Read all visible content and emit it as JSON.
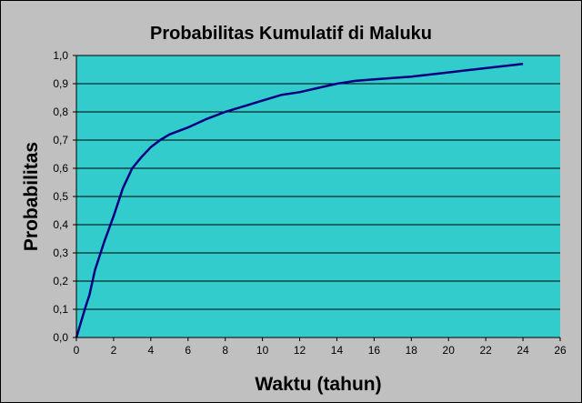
{
  "colors": {
    "background": "#c0c0c0",
    "plot_area": "#33cccc",
    "line": "#000080",
    "grid": "#000000"
  },
  "chart_data": {
    "type": "line",
    "title": "Probabilitas Kumulatif di  Maluku",
    "xlabel": "Waktu (tahun)",
    "ylabel": "Probabilitas",
    "xlim": [
      0,
      26
    ],
    "ylim": [
      0,
      1
    ],
    "grid": true,
    "x_ticks": [
      0,
      2,
      4,
      6,
      8,
      10,
      12,
      14,
      16,
      18,
      20,
      22,
      24,
      26
    ],
    "x_tick_labels": [
      "0",
      "2",
      "4",
      "6",
      "8",
      "10",
      "12",
      "14",
      "16",
      "18",
      "20",
      "22",
      "24",
      "26"
    ],
    "y_ticks": [
      0,
      0.1,
      0.2,
      0.3,
      0.4,
      0.5,
      0.6,
      0.7,
      0.8,
      0.9,
      1.0
    ],
    "y_tick_labels": [
      "0,0",
      "0,1",
      "0,2",
      "0,3",
      "0,4",
      "0,5",
      "0,6",
      "0,7",
      "0,8",
      "0,9",
      "1,0"
    ],
    "series": [
      {
        "x": [
          0,
          0.5,
          0.7,
          1,
          1.5,
          2,
          2.5,
          3,
          3.5,
          4,
          4.5,
          5,
          6,
          7,
          8,
          9,
          10,
          11,
          12,
          13,
          14,
          15,
          16,
          18,
          20,
          22,
          24
        ],
        "values": [
          0,
          0.11,
          0.15,
          0.24,
          0.34,
          0.43,
          0.53,
          0.6,
          0.64,
          0.675,
          0.7,
          0.72,
          0.745,
          0.775,
          0.8,
          0.82,
          0.84,
          0.86,
          0.87,
          0.885,
          0.9,
          0.91,
          0.915,
          0.925,
          0.94,
          0.955,
          0.97
        ]
      }
    ]
  }
}
